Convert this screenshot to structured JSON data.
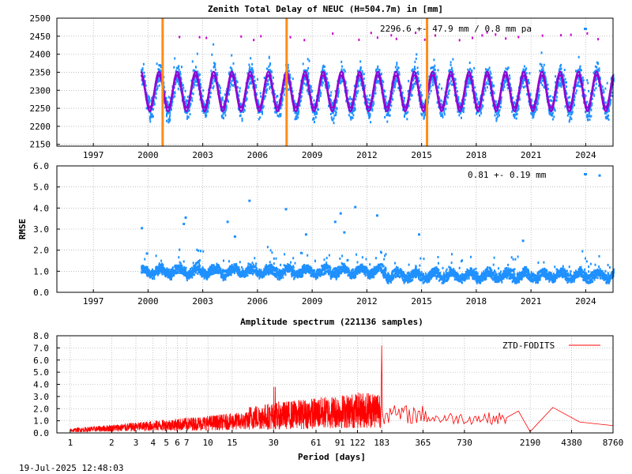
{
  "footer": {
    "timestamp": "19-Jul-2025 12:48:03"
  },
  "colors": {
    "scatter": "#1e90ff",
    "model": "#9400d3",
    "outlier": "#cc00cc",
    "event": "#ff8c1a",
    "spectrum": "#ff0000"
  },
  "chart_data": [
    {
      "type": "scatter",
      "title": "Zenith Total Delay of NEUC (H=504.7m) in [mm]",
      "annotation": "2296.6 +-  47.9 mm /  0.8 mm pa",
      "xlim": [
        1995.0,
        2025.5
      ],
      "ylim": [
        2145,
        2500
      ],
      "x_tick_labels": [
        "1997",
        "2000",
        "2003",
        "2006",
        "2009",
        "2012",
        "2015",
        "2018",
        "2021",
        "2024"
      ],
      "x_ticks": [
        1997,
        2000,
        2003,
        2006,
        2009,
        2012,
        2015,
        2018,
        2021,
        2024
      ],
      "y_tick_labels": [
        "2500",
        "2450",
        "2400",
        "2350",
        "2300",
        "2250",
        "2200",
        "2150"
      ],
      "y_ticks": [
        2500,
        2450,
        2400,
        2350,
        2300,
        2250,
        2200,
        2150
      ],
      "data_range": [
        1999.6,
        2025.5
      ],
      "mean": 2296.6,
      "std": 47.9,
      "trend_per_year": 0.8,
      "seasonal_amplitude": 50,
      "event_lines": [
        2000.8,
        2007.6,
        2015.3
      ],
      "grid": true
    },
    {
      "type": "scatter",
      "ylabel": "RMSE",
      "annotation": "0.81 +-  0.19 mm",
      "xlim": [
        1995.0,
        2025.5
      ],
      "ylim": [
        0,
        6
      ],
      "x_tick_labels": [
        "1997",
        "2000",
        "2003",
        "2006",
        "2009",
        "2012",
        "2015",
        "2018",
        "2021",
        "2024"
      ],
      "x_ticks": [
        1997,
        2000,
        2003,
        2006,
        2009,
        2012,
        2015,
        2018,
        2021,
        2024
      ],
      "y_tick_labels": [
        "6.0",
        "5.0",
        "4.0",
        "3.0",
        "2.0",
        "1.0",
        "0.0"
      ],
      "y_ticks": [
        6,
        5,
        4,
        3,
        2,
        1,
        0
      ],
      "mean": 0.81,
      "std": 0.19,
      "outliers": [
        [
          1999.6,
          3.1
        ],
        [
          2001.9,
          3.3
        ],
        [
          2002.0,
          3.6
        ],
        [
          2004.3,
          3.4
        ],
        [
          2004.7,
          2.7
        ],
        [
          2005.5,
          4.4
        ],
        [
          2007.5,
          4.0
        ],
        [
          2008.6,
          2.8
        ],
        [
          2010.2,
          3.4
        ],
        [
          2010.5,
          3.8
        ],
        [
          2010.7,
          2.9
        ],
        [
          2011.3,
          4.1
        ],
        [
          2012.5,
          3.7
        ],
        [
          2014.8,
          2.8
        ],
        [
          2020.5,
          2.5
        ],
        [
          2024.7,
          5.6
        ]
      ],
      "grid": true
    },
    {
      "type": "line",
      "title": "Amplitude spectrum (221136 samples)",
      "xlabel": "Period [days]",
      "legend": "ZTD-FODITS",
      "legend_position": "top-right",
      "x_scale": "log",
      "xlim": [
        0.8,
        8760
      ],
      "ylim": [
        0,
        8
      ],
      "x_tick_labels": [
        "1",
        "2",
        "3",
        "4",
        "5",
        "6",
        "7",
        "10",
        "15",
        "30",
        "61",
        "91",
        "122",
        "183",
        "365",
        "730",
        "2190",
        "4380",
        "8760"
      ],
      "x_ticks": [
        1,
        2,
        3,
        4,
        5,
        6,
        7,
        10,
        15,
        30,
        61,
        91,
        122,
        183,
        365,
        730,
        2190,
        4380,
        8760
      ],
      "y_tick_labels": [
        "8.0",
        "7.0",
        "6.0",
        "5.0",
        "4.0",
        "3.0",
        "2.0",
        "1.0",
        "0.0"
      ],
      "y_ticks": [
        8,
        7,
        6,
        5,
        4,
        3,
        2,
        1,
        0
      ],
      "peaks": [
        [
          1,
          0.3
        ],
        [
          30,
          3.8
        ],
        [
          183,
          7.2
        ],
        [
          365,
          1.9
        ],
        [
          730,
          1.1
        ],
        [
          2190,
          0.1
        ],
        [
          3200,
          2.1
        ],
        [
          8760,
          0.6
        ]
      ],
      "grid": true
    }
  ]
}
